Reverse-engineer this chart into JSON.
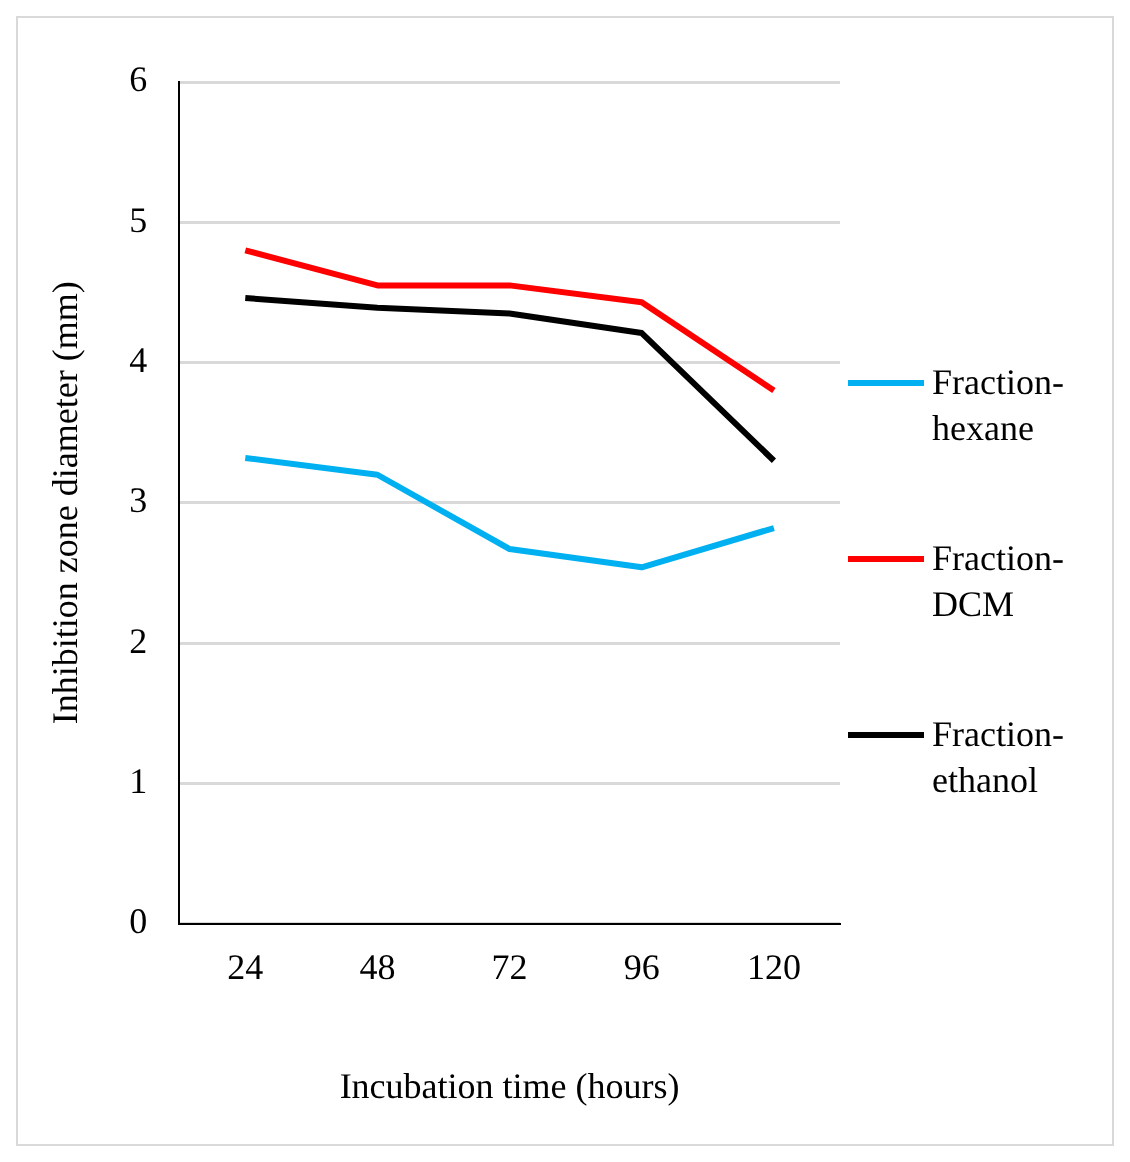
{
  "chart_data": {
    "type": "line",
    "xlabel": "Incubation time (hours)",
    "ylabel": "Inhibition zone diameter (mm)",
    "categories": [
      "24",
      "48",
      "72",
      "96",
      "120"
    ],
    "ylim": [
      0,
      6
    ],
    "yticks": [
      0,
      1,
      2,
      3,
      4,
      5,
      6
    ],
    "grid": "y",
    "legend": "right",
    "marker": "none",
    "line_style": "solid",
    "series": [
      {
        "name": "Fraction-hexane",
        "color": "#00b0f0",
        "values": [
          3.32,
          3.2,
          2.67,
          2.54,
          2.82
        ]
      },
      {
        "name": "Fraction-DCM",
        "color": "#ff0000",
        "values": [
          4.8,
          4.55,
          4.55,
          4.43,
          3.8
        ]
      },
      {
        "name": "Fraction-ethanol",
        "color": "#000000",
        "values": [
          4.46,
          4.39,
          4.35,
          4.21,
          3.3
        ]
      }
    ]
  }
}
